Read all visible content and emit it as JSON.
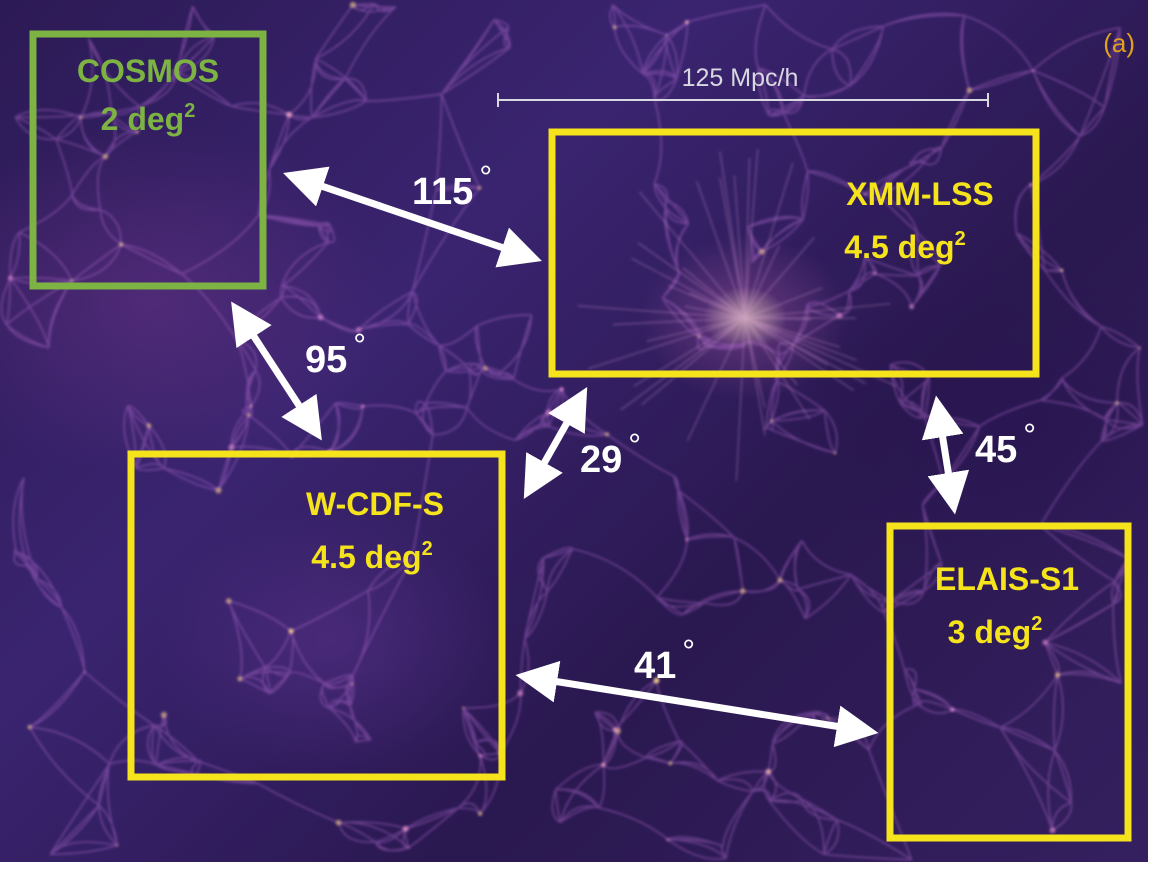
{
  "panel_label": "(a)",
  "scale_bar": {
    "label": "125 Mpc/h"
  },
  "fields": [
    {
      "id": "cosmos",
      "name": "COSMOS",
      "area_value": "2 deg",
      "area_exp": "2",
      "color": "#7cb342"
    },
    {
      "id": "xmm-lss",
      "name": "XMM-LSS",
      "area_value": "4.5 deg",
      "area_exp": "2",
      "color": "#f5e31c"
    },
    {
      "id": "w-cdf-s",
      "name": "W-CDF-S",
      "area_value": "4.5 deg",
      "area_exp": "2",
      "color": "#f5e31c"
    },
    {
      "id": "elais-s1",
      "name": "ELAIS-S1",
      "area_value": "3 deg",
      "area_exp": "2",
      "color": "#f5e31c"
    }
  ],
  "separations": [
    {
      "id": "cosmos-xmm",
      "value": "115",
      "unit": "°"
    },
    {
      "id": "cosmos-wcdfs",
      "value": "95",
      "unit": "°"
    },
    {
      "id": "wcdfs-xmm",
      "value": "29",
      "unit": "°"
    },
    {
      "id": "xmm-elais",
      "value": "45",
      "unit": "°"
    },
    {
      "id": "wcdfs-elais",
      "value": "41",
      "unit": "°"
    }
  ],
  "colors": {
    "panel_label": "#e0a020",
    "arrow": "#ffffff",
    "scale_bar": "#d8d8e0",
    "yellow_box": "#f5e31c",
    "green_box": "#7cb342"
  }
}
